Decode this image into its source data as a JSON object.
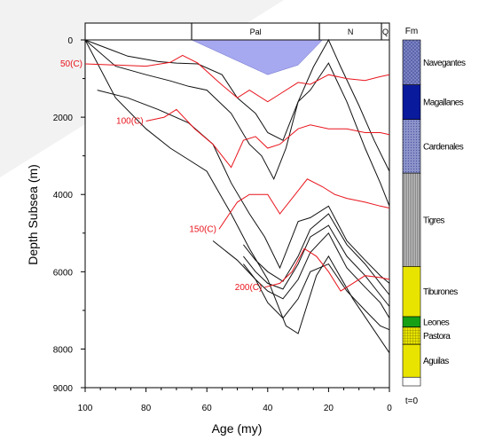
{
  "chart_data": {
    "type": "line",
    "title": "",
    "xlabel": "Age (my)",
    "ylabel": "Depth Subsea (m)",
    "xlim": [
      100,
      0
    ],
    "ylim": [
      9000,
      0
    ],
    "x_ticks": [
      100,
      80,
      60,
      40,
      20,
      0
    ],
    "y_tick_labels": [
      0,
      2000,
      4000,
      6000,
      8000,
      9000
    ],
    "grid": false,
    "epochs": [
      {
        "label": "",
        "from": 100,
        "to": 65
      },
      {
        "label": "Pal",
        "from": 65,
        "to": 23
      },
      {
        "label": "N",
        "from": 23,
        "to": 2.6
      },
      {
        "label": "Q",
        "from": 2.6,
        "to": 0
      }
    ],
    "water_column": [
      [
        65,
        0
      ],
      [
        40,
        900
      ],
      [
        30,
        650
      ],
      [
        22,
        0
      ]
    ],
    "burial_series": [
      {
        "x": [
          100,
          84,
          68,
          54,
          48,
          41,
          35,
          30,
          25,
          20,
          15,
          10,
          4,
          0
        ],
        "y": [
          0,
          0,
          0,
          0,
          0,
          0,
          0,
          0,
          0,
          0,
          0,
          0,
          0,
          0
        ]
      },
      {
        "x": [
          90,
          75,
          66,
          56,
          49,
          41,
          35,
          30,
          24,
          20,
          14,
          8,
          2,
          0
        ],
        "y": [
          0,
          0,
          0,
          0,
          0,
          0,
          0,
          0,
          0,
          0,
          0,
          0,
          0,
          0
        ]
      },
      {
        "x": [
          100,
          86,
          76,
          70,
          63,
          55,
          50,
          44,
          40,
          35,
          30,
          25,
          20,
          16,
          10,
          5,
          0
        ],
        "y": [
          0,
          420,
          560,
          600,
          620,
          900,
          1500,
          1900,
          2400,
          2600,
          1600,
          700,
          0,
          700,
          1700,
          2600,
          3400
        ]
      },
      {
        "x": [
          100,
          90,
          80,
          72,
          66,
          60,
          52,
          46,
          42,
          38,
          34,
          30,
          26,
          20,
          14,
          8,
          3,
          0
        ],
        "y": [
          0,
          680,
          900,
          1060,
          1200,
          1300,
          1900,
          2700,
          3000,
          3600,
          2800,
          1600,
          1300,
          600,
          1600,
          2800,
          3700,
          4300
        ]
      },
      {
        "x": [
          96,
          86,
          76,
          66,
          58,
          52,
          46,
          41,
          36,
          30,
          26,
          20,
          14,
          8,
          3,
          0
        ],
        "y": [
          1300,
          1500,
          1800,
          2150,
          2700,
          3700,
          4500,
          5100,
          5900,
          4700,
          4600,
          4300,
          5200,
          5700,
          6100,
          6300
        ]
      },
      {
        "x": [
          48,
          44,
          40,
          35,
          30,
          26,
          20,
          14,
          8,
          3,
          0
        ],
        "y": [
          5300,
          5700,
          6000,
          6250,
          5600,
          4900,
          4500,
          5300,
          5800,
          6300,
          6600
        ]
      },
      {
        "x": [
          48,
          44,
          40,
          35,
          30,
          26,
          20,
          14,
          8,
          3,
          0
        ],
        "y": [
          5600,
          6000,
          6300,
          6450,
          5800,
          5100,
          4800,
          5600,
          6100,
          6600,
          6900
        ]
      },
      {
        "x": [
          48,
          44,
          40,
          35,
          30,
          26,
          20,
          14,
          8,
          3,
          0
        ],
        "y": [
          5800,
          6200,
          6500,
          6700,
          6200,
          5500,
          5000,
          5900,
          6400,
          6800,
          7200
        ]
      },
      {
        "x": [
          58,
          50,
          44,
          40,
          35,
          30,
          26,
          20,
          14,
          8,
          3,
          0
        ],
        "y": [
          5200,
          5700,
          6200,
          6800,
          7200,
          6700,
          6000,
          5800,
          6500,
          7000,
          7400,
          7500
        ]
      },
      {
        "x": [
          100,
          90,
          80,
          72,
          66,
          60,
          52,
          46,
          40,
          34,
          30,
          24,
          20,
          12,
          6,
          0
        ],
        "y": [
          0,
          1500,
          2300,
          2800,
          3100,
          3400,
          4500,
          5400,
          6200,
          7400,
          7600,
          6100,
          5600,
          6700,
          7400,
          8100
        ]
      }
    ],
    "isotherms": [
      {
        "name": "50(C)",
        "x": [
          100,
          90,
          80,
          72,
          68,
          63,
          56,
          50,
          46,
          40,
          36,
          30,
          26,
          20,
          14,
          8,
          3,
          0
        ],
        "y": [
          620,
          650,
          680,
          580,
          400,
          600,
          1100,
          1500,
          1300,
          1600,
          1400,
          1100,
          1150,
          900,
          1000,
          1050,
          950,
          900
        ]
      },
      {
        "name": "100(C)",
        "x": [
          80,
          74,
          70,
          64,
          58,
          52,
          48,
          44,
          40,
          36,
          30,
          26,
          20,
          14,
          8,
          3,
          0
        ],
        "y": [
          2100,
          2000,
          1800,
          2300,
          2700,
          3300,
          2600,
          2500,
          2800,
          2700,
          2300,
          2200,
          2300,
          2300,
          2400,
          2400,
          2450
        ]
      },
      {
        "name": "150(C)",
        "x": [
          56,
          50,
          46,
          40,
          36,
          30,
          27,
          22,
          18,
          14,
          8,
          3,
          0
        ],
        "y": [
          4900,
          4200,
          4000,
          4000,
          4500,
          3900,
          3600,
          3800,
          4000,
          4100,
          4200,
          4300,
          4350
        ]
      },
      {
        "name": "200(C)",
        "x": [
          41,
          36,
          32,
          28,
          24,
          20,
          16,
          12,
          8,
          3,
          0
        ],
        "y": [
          6400,
          6300,
          6000,
          5400,
          5600,
          6000,
          6500,
          6300,
          6100,
          6150,
          6200
        ]
      }
    ],
    "formations": [
      {
        "name": "Navegantes",
        "from": 0,
        "to": 0.13,
        "color": "#7f87c4",
        "pattern": "cross"
      },
      {
        "name": "Magallanes",
        "from": 0.13,
        "to": 0.23,
        "color": "#0a1a9c",
        "pattern": "solid"
      },
      {
        "name": "Cardenales",
        "from": 0.23,
        "to": 0.385,
        "color": "#8b93c9",
        "pattern": "dots"
      },
      {
        "name": "Tigres",
        "from": 0.385,
        "to": 0.655,
        "color": "#a3a3a3",
        "pattern": "vlines"
      },
      {
        "name": "Tiburones",
        "from": 0.655,
        "to": 0.8,
        "color": "#e8e400",
        "pattern": "solid"
      },
      {
        "name": "Leones",
        "from": 0.8,
        "to": 0.83,
        "color": "#16a016",
        "pattern": "solid"
      },
      {
        "name": "Pastora",
        "from": 0.83,
        "to": 0.88,
        "color": "#e8e400",
        "pattern": "grid"
      },
      {
        "name": "Aguilas",
        "from": 0.88,
        "to": 0.975,
        "color": "#e8e400",
        "pattern": "solid"
      },
      {
        "name": "",
        "from": 0.975,
        "to": 1.0,
        "color": "#ffffff",
        "pattern": "solid"
      }
    ],
    "formation_header": "Fm",
    "formation_footer": "t=0"
  }
}
